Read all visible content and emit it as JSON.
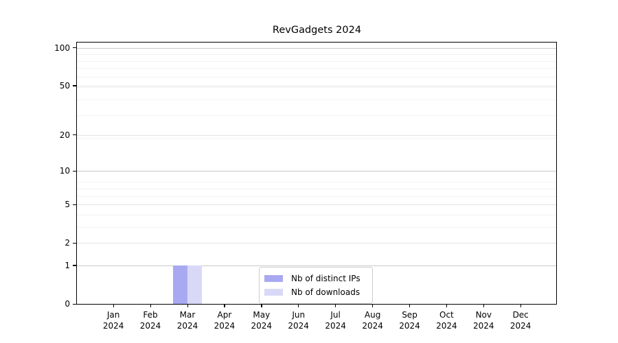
{
  "title": "RevGadgets 2024",
  "chart_data": {
    "type": "bar",
    "title": "RevGadgets 2024",
    "categories": [
      "Jan 2024",
      "Feb 2024",
      "Mar 2024",
      "Apr 2024",
      "May 2024",
      "Jun 2024",
      "Jul 2024",
      "Aug 2024",
      "Sep 2024",
      "Oct 2024",
      "Nov 2024",
      "Dec 2024"
    ],
    "series": [
      {
        "name": "Nb of distinct IPs",
        "color": "#a9a9f2",
        "values": [
          0,
          0,
          1,
          0,
          0,
          0,
          0,
          0,
          0,
          0,
          0,
          0
        ]
      },
      {
        "name": "Nb of downloads",
        "color": "#d9d9f7",
        "values": [
          0,
          0,
          1,
          0,
          0,
          0,
          0,
          0,
          0,
          0,
          0,
          0
        ]
      }
    ],
    "xlabel": "",
    "ylabel": "",
    "y_scale": "log1p",
    "y_ticks": [
      0,
      1,
      2,
      5,
      10,
      20,
      50,
      100
    ],
    "strong_grid_ticks": [
      1,
      10,
      100
    ],
    "ylim": [
      0,
      110
    ],
    "grid": true,
    "legend_position": "lower-center-inside",
    "background": "#ffffff",
    "spine_color": "#000000"
  }
}
